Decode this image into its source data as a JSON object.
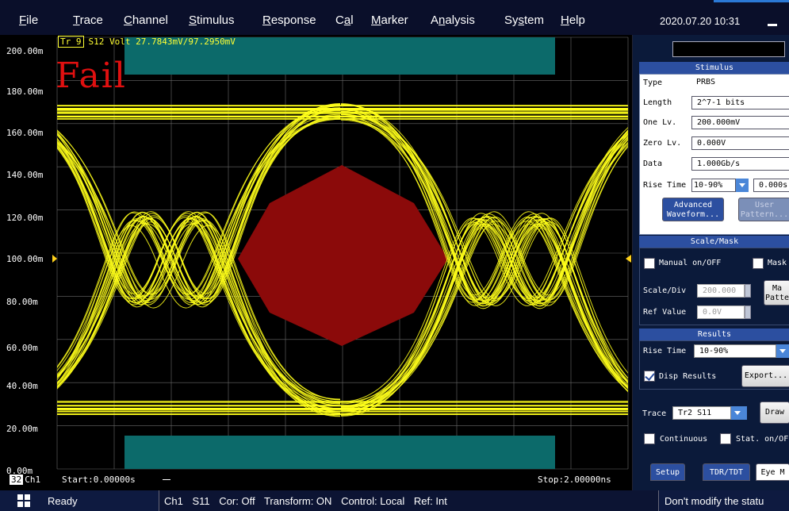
{
  "menu": {
    "items": [
      {
        "key": "file",
        "label": "File",
        "u": "F",
        "rest": "ile"
      },
      {
        "key": "trace",
        "label": "Trace",
        "u": "T",
        "rest": "race"
      },
      {
        "key": "channel",
        "label": "Channel",
        "u": "C",
        "rest": "hannel"
      },
      {
        "key": "stimulus",
        "label": "Stimulus",
        "u": "S",
        "rest": "timulus"
      },
      {
        "key": "response",
        "label": "Response",
        "u": "R",
        "rest": "esponse"
      },
      {
        "key": "cal",
        "label": "Cal",
        "pre": "C",
        "u": "a",
        "rest": "l"
      },
      {
        "key": "marker",
        "label": "Marker",
        "u": "M",
        "rest": "arker"
      },
      {
        "key": "analysis",
        "label": "Analysis",
        "pre": "A",
        "u": "n",
        "rest": "alysis"
      },
      {
        "key": "system",
        "label": "System",
        "pre": "Sy",
        "u": "s",
        "rest": "tem"
      },
      {
        "key": "help",
        "label": "Help",
        "u": "H",
        "rest": "elp"
      }
    ],
    "datetime": "2020.07.20 10:31"
  },
  "plot": {
    "trace_box": "Tr 9",
    "trace_info": "S12 Volt 27.7843mV/97.2950mV",
    "fail_text": "Fail",
    "y_ticks": [
      "200.00m",
      "180.00m",
      "160.00m",
      "140.00m",
      "120.00m",
      "100.00m",
      "80.00m",
      "60.00m",
      "40.00m",
      "20.00m",
      "0.00m"
    ],
    "channel_num": "32",
    "channel_label": "Ch1",
    "start": "Start:0.00000s",
    "stop": "Stop:2.00000ns",
    "colors": {
      "trace": "#ffff1a",
      "mask_inner": "#8b0a0a",
      "mask_outer": "#0c6a6a",
      "grid": "#6a6a6a"
    }
  },
  "stimulus": {
    "header": "Stimulus",
    "type_label": "Type",
    "type_value": "PRBS",
    "length_label": "Length",
    "length_value": "2^7-1 bits",
    "one_label": "One Lv.",
    "one_value": "200.000mV",
    "zero_label": "Zero Lv.",
    "zero_value": "0.000V",
    "data_label": "Data",
    "data_value": "1.000Gb/s",
    "rise_label": "Rise Time",
    "rise_mode": "10-90%",
    "rise_value": "0.000s",
    "adv_btn_1": "Advanced",
    "adv_btn_2": "Waveform...",
    "user_btn_1": "User",
    "user_btn_2": "Pattern..."
  },
  "scale_mask": {
    "header": "Scale/Mask",
    "manual_label": "Manual on/OFF",
    "mask_label": "Mask",
    "scale_label": "Scale/Div",
    "scale_value": "200.000",
    "ref_label": "Ref Value",
    "ref_value": "0.0V",
    "mask_btn_1": "Ma",
    "mask_btn_2": "Patte"
  },
  "results": {
    "header": "Results",
    "rise_label": "Rise Time",
    "rise_value": "10-90%",
    "disp_label": "Disp Results",
    "export_btn": "Export..."
  },
  "trace_ctrl": {
    "label": "Trace",
    "value": "Tr2 S11",
    "draw_btn": "Draw",
    "continuous_label": "Continuous",
    "stat_label": "Stat. on/OF"
  },
  "tabs": [
    "Setup",
    "TDR/TDT",
    "Eye M"
  ],
  "status": {
    "ready": "Ready",
    "ch": "Ch1",
    "param": "S11",
    "cor": "Cor: Off",
    "transform": "Transform: ON",
    "control": "Control: Local",
    "ref": "Ref: Int",
    "hint": "Don't modify the statu"
  }
}
